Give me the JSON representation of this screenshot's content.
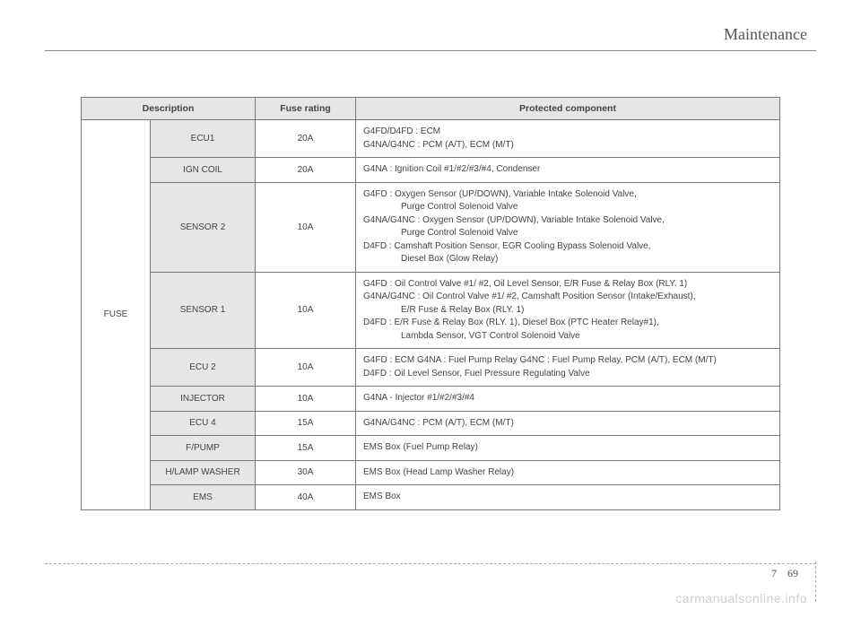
{
  "header": {
    "section_title": "Maintenance"
  },
  "page_number": {
    "section": "7",
    "page": "69"
  },
  "watermark": "carmanualsonline.info",
  "table": {
    "columns": {
      "description": "Description",
      "fuse_rating": "Fuse rating",
      "protected_component": "Protected component"
    },
    "category_label": "FUSE",
    "header_bg": "#e6e6e6",
    "cell_border": "#777777",
    "font_size": 10,
    "rows": [
      {
        "desc": "ECU1",
        "rating": "20A",
        "comp_lines": [
          "G4FD/D4FD : ECM",
          "G4NA/G4NC : PCM (A/T), ECM (M/T)"
        ]
      },
      {
        "desc": "IGN COIL",
        "rating": "20A",
        "comp_lines": [
          "G4NA : Ignition Coil #1/#2/#3/#4, Condenser"
        ]
      },
      {
        "desc": "SENSOR 2",
        "rating": "10A",
        "comp_lines": [
          "G4FD : Oxygen Sensor (UP/DOWN), Variable Intake Solenoid Valve,",
          {
            "indent": true,
            "text": "Purge Control Solenoid Valve"
          },
          "G4NA/G4NC : Oxygen Sensor (UP/DOWN), Variable Intake Solenoid Valve,",
          {
            "indent": true,
            "text": "Purge Control Solenoid Valve"
          },
          "D4FD : Camshaft Position Sensor, EGR Cooling Bypass Solenoid Valve,",
          {
            "indent": true,
            "text": "Diesel Box (Glow Relay)"
          }
        ]
      },
      {
        "desc": "SENSOR 1",
        "rating": "10A",
        "comp_lines": [
          "G4FD : Oil Control Valve #1/ #2, Oil Level Sensor, E/R Fuse & Relay Box (RLY. 1)",
          "G4NA/G4NC : Oil Control Valve #1/ #2, Camshaft Position Sensor (Intake/Exhaust),",
          {
            "indent": true,
            "text": "E/R Fuse & Relay Box (RLY. 1)"
          },
          "D4FD : E/R Fuse & Relay Box (RLY. 1), Diesel Box (PTC Heater Relay#1),",
          {
            "indent": true,
            "text": "Lambda Sensor, VGT Control Solenoid Valve"
          }
        ]
      },
      {
        "desc": "ECU 2",
        "rating": "10A",
        "comp_lines": [
          "G4FD : ECM G4NA : Fuel Pump Relay G4NC : Fuel Pump Relay, PCM (A/T), ECM (M/T)",
          "D4FD : Oil Level Sensor, Fuel Pressure Regulating Valve"
        ]
      },
      {
        "desc": "INJECTOR",
        "rating": "10A",
        "comp_lines": [
          "G4NA - Injector #1/#2/#3/#4"
        ]
      },
      {
        "desc": "ECU 4",
        "rating": "15A",
        "comp_lines": [
          "G4NA/G4NC : PCM (A/T), ECM (M/T)"
        ]
      },
      {
        "desc": "F/PUMP",
        "rating": "15A",
        "comp_lines": [
          "EMS Box (Fuel Pump Relay)"
        ]
      },
      {
        "desc": "H/LAMP WASHER",
        "rating": "30A",
        "comp_lines": [
          "EMS Box (Head Lamp Washer Relay)"
        ]
      },
      {
        "desc": "EMS",
        "rating": "40A",
        "comp_lines": [
          "EMS Box"
        ]
      }
    ]
  }
}
